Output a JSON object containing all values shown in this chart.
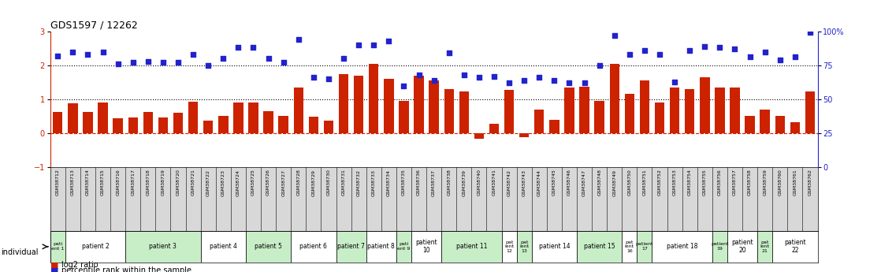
{
  "title": "GDS1597 / 12262",
  "gsm_labels": [
    "GSM38712",
    "GSM38713",
    "GSM38714",
    "GSM38715",
    "GSM38716",
    "GSM38717",
    "GSM38718",
    "GSM38719",
    "GSM38720",
    "GSM38721",
    "GSM38722",
    "GSM38723",
    "GSM38724",
    "GSM38725",
    "GSM38726",
    "GSM38727",
    "GSM38728",
    "GSM38729",
    "GSM38730",
    "GSM38731",
    "GSM38732",
    "GSM38733",
    "GSM38734",
    "GSM38735",
    "GSM38736",
    "GSM38737",
    "GSM38738",
    "GSM38739",
    "GSM38740",
    "GSM38741",
    "GSM38742",
    "GSM38743",
    "GSM38744",
    "GSM38745",
    "GSM38746",
    "GSM38747",
    "GSM38748",
    "GSM38749",
    "GSM38750",
    "GSM38751",
    "GSM38752",
    "GSM38753",
    "GSM38754",
    "GSM38755",
    "GSM38756",
    "GSM38757",
    "GSM38758",
    "GSM38759",
    "GSM38760",
    "GSM38761",
    "GSM38762"
  ],
  "log2_ratio": [
    0.62,
    0.88,
    0.62,
    0.9,
    0.45,
    0.47,
    0.62,
    0.47,
    0.6,
    0.93,
    0.38,
    0.52,
    0.9,
    0.9,
    0.64,
    0.52,
    1.35,
    0.48,
    0.38,
    1.75,
    1.7,
    2.05,
    1.6,
    0.95,
    1.7,
    1.55,
    1.3,
    1.22,
    -0.17,
    0.28,
    1.27,
    -0.12,
    0.7,
    0.4,
    1.35,
    1.38,
    0.95,
    2.05,
    1.15,
    1.55,
    0.9,
    1.35,
    1.3,
    1.65,
    1.35,
    1.35,
    0.52,
    0.69,
    0.5,
    0.32,
    1.22
  ],
  "percentile_pct": [
    82,
    85,
    83,
    85,
    76,
    77,
    78,
    77,
    77,
    83,
    75,
    80,
    88,
    88,
    80,
    77,
    94,
    66,
    65,
    80,
    90,
    90,
    93,
    60,
    68,
    64,
    84,
    68,
    66,
    67,
    62,
    64,
    66,
    64,
    62,
    62,
    75,
    97,
    83,
    86,
    83,
    63,
    86,
    89,
    88,
    87,
    81,
    85,
    79,
    81,
    99
  ],
  "patients": [
    {
      "label": "pati\nent 1",
      "start": 0,
      "end": 1,
      "color": "#c8eec8"
    },
    {
      "label": "patient 2",
      "start": 1,
      "end": 5,
      "color": "#ffffff"
    },
    {
      "label": "patient 3",
      "start": 5,
      "end": 10,
      "color": "#c8eec8"
    },
    {
      "label": "patient 4",
      "start": 10,
      "end": 13,
      "color": "#ffffff"
    },
    {
      "label": "patient 5",
      "start": 13,
      "end": 16,
      "color": "#c8eec8"
    },
    {
      "label": "patient 6",
      "start": 16,
      "end": 19,
      "color": "#ffffff"
    },
    {
      "label": "patient 7",
      "start": 19,
      "end": 21,
      "color": "#c8eec8"
    },
    {
      "label": "patient 8",
      "start": 21,
      "end": 23,
      "color": "#ffffff"
    },
    {
      "label": "pati\nent 9",
      "start": 23,
      "end": 24,
      "color": "#c8eec8"
    },
    {
      "label": "patient\n10",
      "start": 24,
      "end": 26,
      "color": "#ffffff"
    },
    {
      "label": "patient 11",
      "start": 26,
      "end": 30,
      "color": "#c8eec8"
    },
    {
      "label": "pat\nient\n12",
      "start": 30,
      "end": 31,
      "color": "#ffffff"
    },
    {
      "label": "pat\nient\n13",
      "start": 31,
      "end": 32,
      "color": "#c8eec8"
    },
    {
      "label": "patient 14",
      "start": 32,
      "end": 35,
      "color": "#ffffff"
    },
    {
      "label": "patient 15",
      "start": 35,
      "end": 38,
      "color": "#c8eec8"
    },
    {
      "label": "pat\nient\n16",
      "start": 38,
      "end": 39,
      "color": "#ffffff"
    },
    {
      "label": "patient\n17",
      "start": 39,
      "end": 40,
      "color": "#c8eec8"
    },
    {
      "label": "patient 18",
      "start": 40,
      "end": 44,
      "color": "#ffffff"
    },
    {
      "label": "patient\n19",
      "start": 44,
      "end": 45,
      "color": "#c8eec8"
    },
    {
      "label": "patient\n20",
      "start": 45,
      "end": 47,
      "color": "#ffffff"
    },
    {
      "label": "pat\nient\n21",
      "start": 47,
      "end": 48,
      "color": "#c8eec8"
    },
    {
      "label": "patient\n22",
      "start": 48,
      "end": 51,
      "color": "#ffffff"
    }
  ],
  "bar_color": "#cc2200",
  "dot_color": "#2222cc",
  "left_ylim": [
    -1.0,
    3.0
  ],
  "left_yticks": [
    -1,
    0,
    1,
    2,
    3
  ],
  "right_yticks_pct": [
    0,
    25,
    50,
    75,
    100
  ],
  "bg_color": "#ffffff",
  "gsm_bg_color": "#d8d8d8"
}
